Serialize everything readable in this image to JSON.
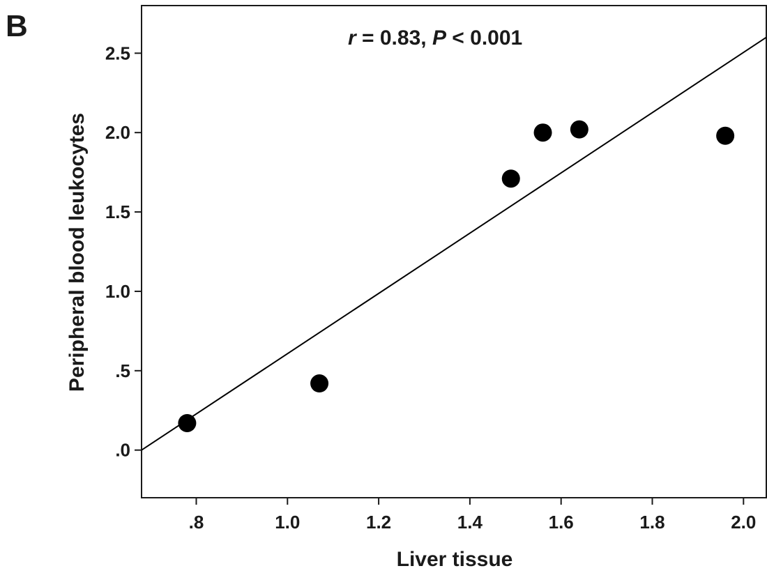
{
  "panel_label": "B",
  "chart_data": {
    "type": "scatter",
    "xlabel": "Liver tissue",
    "ylabel": "Peripheral blood leukocytes",
    "xlim": [
      0.68,
      2.05
    ],
    "ylim": [
      -0.3,
      2.8
    ],
    "x_ticks": [
      0.8,
      1.0,
      1.2,
      1.4,
      1.6,
      1.8,
      2.0
    ],
    "x_tick_labels": [
      ".8",
      "1.0",
      "1.2",
      "1.4",
      "1.6",
      "1.8",
      "2.0"
    ],
    "y_ticks": [
      0.0,
      0.5,
      1.0,
      1.5,
      2.0,
      2.5
    ],
    "y_tick_labels": [
      ".0",
      ".5",
      "1.0",
      "1.5",
      "2.0",
      "2.5"
    ],
    "points": [
      {
        "x": 0.78,
        "y": 0.17
      },
      {
        "x": 1.07,
        "y": 0.42
      },
      {
        "x": 1.49,
        "y": 1.71
      },
      {
        "x": 1.56,
        "y": 2.0
      },
      {
        "x": 1.64,
        "y": 2.02
      },
      {
        "x": 1.96,
        "y": 1.98
      }
    ],
    "fit_line": {
      "x": [
        0.68,
        2.05
      ],
      "y": [
        0.0,
        2.6
      ]
    },
    "annotation": {
      "r_symbol": "r",
      "r_text": " = 0.83, ",
      "p_symbol": "P",
      "p_text": " < 0.001"
    },
    "grid": false,
    "legend": "none",
    "colors": {
      "points": "#000000",
      "line": "#000000",
      "axis": "#1a1a1a"
    }
  }
}
